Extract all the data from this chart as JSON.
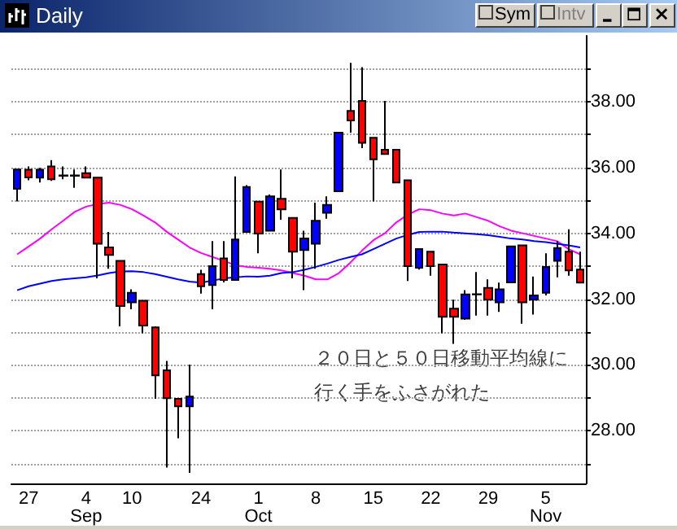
{
  "chart_data": {
    "type": "candlestick",
    "title": "Daily",
    "categories": [
      null,
      "27",
      null,
      null,
      null,
      null,
      "4\nSep",
      null,
      null,
      null,
      "10",
      null,
      null,
      null,
      null,
      null,
      "24",
      null,
      null,
      null,
      null,
      "1\nOct",
      null,
      null,
      null,
      null,
      "8",
      null,
      null,
      null,
      null,
      "15",
      null,
      null,
      null,
      null,
      "22",
      null,
      null,
      null,
      null,
      "29",
      null,
      null,
      null,
      null,
      "5\nNov",
      null,
      null,
      null
    ],
    "ohlc": [
      [
        35.35,
        35.94,
        34.97,
        35.94
      ],
      [
        35.93,
        36.03,
        35.61,
        35.7
      ],
      [
        35.69,
        35.99,
        35.54,
        35.93
      ],
      [
        36.03,
        36.22,
        35.59,
        35.64
      ],
      [
        35.76,
        36.03,
        35.64,
        35.75
      ],
      [
        35.76,
        35.94,
        35.38,
        35.75
      ],
      [
        35.83,
        36.03,
        35.67,
        35.69
      ],
      [
        35.69,
        35.69,
        32.63,
        33.68
      ],
      [
        33.57,
        34.04,
        32.92,
        33.34
      ],
      [
        33.16,
        33.16,
        31.17,
        31.79
      ],
      [
        31.9,
        32.3,
        31.69,
        32.19
      ],
      [
        31.95,
        31.95,
        30.96,
        31.2
      ],
      [
        31.14,
        31.17,
        28.97,
        29.68
      ],
      [
        29.84,
        30.12,
        26.88,
        28.99
      ],
      [
        28.97,
        28.97,
        27.77,
        28.74
      ],
      [
        28.74,
        30.01,
        26.72,
        29.04
      ],
      [
        32.76,
        32.89,
        32.17,
        32.39
      ],
      [
        32.43,
        33.76,
        31.69,
        33.0
      ],
      [
        33.24,
        33.76,
        32.51,
        32.58
      ],
      [
        32.58,
        35.73,
        32.58,
        33.81
      ],
      [
        34.04,
        35.46,
        34.04,
        35.41
      ],
      [
        34.96,
        34.96,
        33.39,
        33.99
      ],
      [
        34.08,
        35.18,
        34.08,
        35.12
      ],
      [
        35.05,
        35.94,
        34.41,
        34.73
      ],
      [
        34.47,
        34.47,
        32.63,
        33.44
      ],
      [
        33.49,
        34.08,
        32.27,
        33.84
      ],
      [
        33.68,
        34.93,
        32.92,
        34.38
      ],
      [
        34.62,
        35.12,
        34.44,
        34.86
      ],
      [
        35.28,
        37.06,
        35.28,
        37.06
      ],
      [
        37.72,
        39.18,
        37.06,
        37.43
      ],
      [
        38.02,
        39.05,
        36.59,
        36.75
      ],
      [
        36.9,
        36.9,
        34.97,
        36.25
      ],
      [
        36.54,
        38.02,
        36.41,
        36.41
      ],
      [
        36.54,
        36.54,
        35.54,
        35.54
      ],
      [
        35.61,
        35.61,
        32.55,
        33.0
      ],
      [
        32.95,
        33.52,
        32.9,
        33.52
      ],
      [
        33.44,
        33.44,
        32.71,
        33.0
      ],
      [
        33.05,
        33.05,
        30.96,
        31.46
      ],
      [
        31.71,
        31.98,
        30.64,
        31.46
      ],
      [
        31.41,
        32.27,
        31.37,
        32.14
      ],
      [
        32.15,
        32.82,
        31.5,
        32.14
      ],
      [
        32.34,
        32.6,
        31.5,
        31.98
      ],
      [
        31.9,
        32.5,
        31.61,
        32.3
      ],
      [
        32.51,
        33.6,
        32.51,
        33.6
      ],
      [
        33.63,
        33.63,
        31.25,
        31.9
      ],
      [
        31.98,
        32.69,
        31.53,
        32.11
      ],
      [
        32.19,
        33.39,
        32.11,
        32.98
      ],
      [
        33.16,
        33.76,
        32.66,
        33.55
      ],
      [
        33.44,
        34.12,
        32.71,
        32.87
      ],
      [
        32.9,
        33.44,
        32.5,
        32.5
      ]
    ],
    "colors": [
      "#0000ff",
      "#ff0000",
      "#0000ff",
      "#ff0000",
      "#000000",
      "#000000",
      "#ff0000",
      "#ff0000",
      "#ff0000",
      "#ff0000",
      "#0000ff",
      "#ff0000",
      "#ff0000",
      "#ff0000",
      "#ff0000",
      "#0000ff",
      "#ff0000",
      "#0000ff",
      "#ff0000",
      "#0000ff",
      "#0000ff",
      "#ff0000",
      "#0000ff",
      "#ff0000",
      "#ff0000",
      "#0000ff",
      "#0000ff",
      "#0000ff",
      "#0000ff",
      "#ff0000",
      "#ff0000",
      "#ff0000",
      "#ff0000",
      "#ff0000",
      "#ff0000",
      "#0000ff",
      "#ff0000",
      "#ff0000",
      "#ff0000",
      "#0000ff",
      "#000000",
      "#ff0000",
      "#0000ff",
      "#0000ff",
      "#ff0000",
      "#0000ff",
      "#0000ff",
      "#0000ff",
      "#ff0000",
      "#ff0000"
    ],
    "series": [
      {
        "type": "line",
        "color": "#ff00ff",
        "values": [
          33.36,
          33.6,
          33.84,
          34.12,
          34.38,
          34.65,
          34.81,
          34.89,
          34.93,
          34.86,
          34.73,
          34.54,
          34.33,
          34.05,
          33.81,
          33.57,
          33.4,
          33.28,
          33.16,
          33.03,
          32.98,
          32.95,
          32.92,
          32.87,
          32.79,
          32.71,
          32.6,
          32.6,
          32.79,
          33.11,
          33.47,
          33.79,
          34.0,
          34.33,
          34.57,
          34.73,
          34.7,
          34.6,
          34.54,
          34.6,
          34.49,
          34.38,
          34.21,
          34.08,
          34.0,
          33.92,
          33.84,
          33.76,
          33.52,
          33.36
        ]
      },
      {
        "type": "line",
        "color": "#0000ff",
        "values": [
          32.27,
          32.39,
          32.47,
          32.55,
          32.6,
          32.63,
          32.66,
          32.72,
          32.79,
          32.84,
          32.85,
          32.82,
          32.76,
          32.68,
          32.6,
          32.53,
          32.5,
          32.56,
          32.63,
          32.66,
          32.69,
          32.68,
          32.71,
          32.79,
          32.82,
          32.89,
          32.98,
          33.08,
          33.19,
          33.28,
          33.36,
          33.52,
          33.68,
          33.84,
          33.95,
          34.04,
          34.05,
          34.05,
          34.02,
          34.0,
          33.97,
          33.94,
          33.89,
          33.84,
          33.81,
          33.76,
          33.73,
          33.68,
          33.63,
          33.57
        ]
      }
    ],
    "ylim": [
      26.4,
      40.0
    ],
    "yticks": [
      {
        "value": 27,
        "label": null
      },
      {
        "value": 28,
        "label": "28.00"
      },
      {
        "value": 29,
        "label": null
      },
      {
        "value": 30,
        "label": "30.00"
      },
      {
        "value": 31,
        "label": null
      },
      {
        "value": 32,
        "label": "32.00"
      },
      {
        "value": 33,
        "label": null
      },
      {
        "value": 34,
        "label": "34.00"
      },
      {
        "value": 35,
        "label": null
      },
      {
        "value": 36,
        "label": "36.00"
      },
      {
        "value": 37,
        "label": null
      },
      {
        "value": 38,
        "label": "38.00"
      },
      {
        "value": 39,
        "label": null
      }
    ],
    "grid": "y",
    "marker": "none",
    "line_style": "solid",
    "annotations": [
      "２０日と５０日移動平均線に",
      "行く手をふさがれた",
      "Sym",
      "Intv"
    ]
  }
}
